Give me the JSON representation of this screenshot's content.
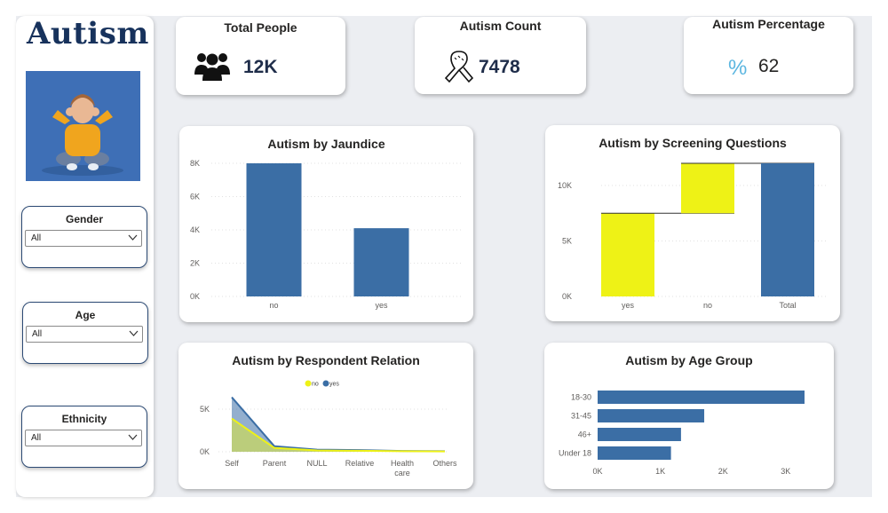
{
  "brand": {
    "title": "Autism"
  },
  "slicers": [
    {
      "label": "Gender",
      "value": "All"
    },
    {
      "label": "Age",
      "value": "All"
    },
    {
      "label": "Ethnicity",
      "value": "All"
    }
  ],
  "kpis": {
    "total_people": {
      "label": "Total People",
      "value": "12K",
      "icon": "people-icon"
    },
    "autism_count": {
      "label": "Autism Count",
      "value": "7478",
      "icon": "awareness-ribbon-icon"
    },
    "autism_percentage": {
      "label": "Autism Percentage",
      "value": "62",
      "symbol": "%"
    }
  },
  "colors": {
    "blue": "#3b6ea5",
    "yellow": "#eef216",
    "navy": "#1f2d4a"
  },
  "chart_data": [
    {
      "id": "jaundice",
      "type": "bar",
      "title": "Autism by Jaundice",
      "categories": [
        "no",
        "yes"
      ],
      "values": [
        8000,
        4100
      ],
      "ylim": [
        0,
        8000
      ],
      "yticks": [
        0,
        2000,
        4000,
        6000,
        8000
      ],
      "ytick_labels": [
        "0K",
        "2K",
        "4K",
        "6K",
        "8K"
      ],
      "grid": true
    },
    {
      "id": "screening",
      "type": "bar",
      "subtype": "waterfall",
      "title": "Autism by Screening Questions",
      "categories": [
        "yes",
        "no",
        "Total"
      ],
      "values": [
        7500,
        4500,
        12000
      ],
      "ylim": [
        0,
        12000
      ],
      "yticks": [
        0,
        5000,
        10000
      ],
      "ytick_labels": [
        "0K",
        "5K",
        "10K"
      ],
      "grid": true
    },
    {
      "id": "relation",
      "type": "area",
      "title": "Autism by Respondent Relation",
      "categories": [
        "Self",
        "Parent",
        "NULL",
        "Relative",
        "Health care",
        "Others"
      ],
      "legend": [
        "no",
        "yes"
      ],
      "series": [
        {
          "name": "no",
          "values": [
            3900,
            450,
            150,
            120,
            60,
            40
          ]
        },
        {
          "name": "yes",
          "values": [
            6400,
            650,
            250,
            200,
            90,
            60
          ]
        }
      ],
      "ylim": [
        0,
        7000
      ],
      "yticks": [
        0,
        5000
      ],
      "ytick_labels": [
        "0K",
        "5K"
      ],
      "legend_position": "top-center",
      "grid": true
    },
    {
      "id": "agegroup",
      "type": "bar",
      "orientation": "horizontal",
      "title": "Autism by Age Group",
      "categories": [
        "18-30",
        "31-45",
        "46+",
        "Under 18"
      ],
      "values": [
        3300,
        1700,
        1330,
        1170
      ],
      "xlim": [
        0,
        3300
      ],
      "xticks": [
        0,
        1000,
        2000,
        3000
      ],
      "xtick_labels": [
        "0K",
        "1K",
        "2K",
        "3K"
      ],
      "grid": false
    }
  ]
}
